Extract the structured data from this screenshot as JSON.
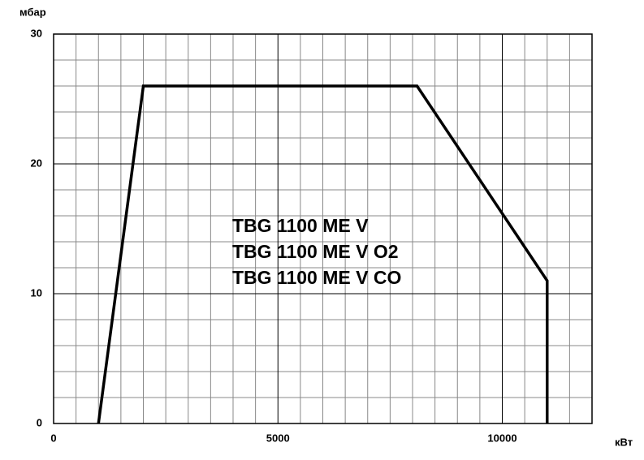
{
  "chart_data": {
    "type": "line",
    "y_label": "мбар",
    "x_label": "кВт",
    "annotation": [
      "TBG 1100 ME V",
      "TBG 1100 ME V O2",
      "TBG 1100 ME V CO"
    ],
    "x": [
      1000,
      2000,
      8100,
      11000,
      11000
    ],
    "series": [
      {
        "color": "#000000",
        "values": [
          0,
          26,
          26,
          11,
          0
        ]
      }
    ],
    "xlim": [
      0,
      12000
    ],
    "ylim": [
      0,
      30
    ],
    "xticks": [
      0,
      5000,
      10000
    ],
    "yticks": [
      0,
      10,
      20,
      30
    ],
    "xminor": [
      500,
      1000,
      1500,
      2000,
      2500,
      3000,
      3500,
      4000,
      4500,
      5500,
      6000,
      6500,
      7000,
      7500,
      8000,
      8500,
      9000,
      9500,
      10500,
      11000,
      11500
    ],
    "yminor": [
      2,
      4,
      6,
      8,
      12,
      14,
      16,
      18,
      22,
      24,
      26,
      28
    ],
    "grid": true
  }
}
